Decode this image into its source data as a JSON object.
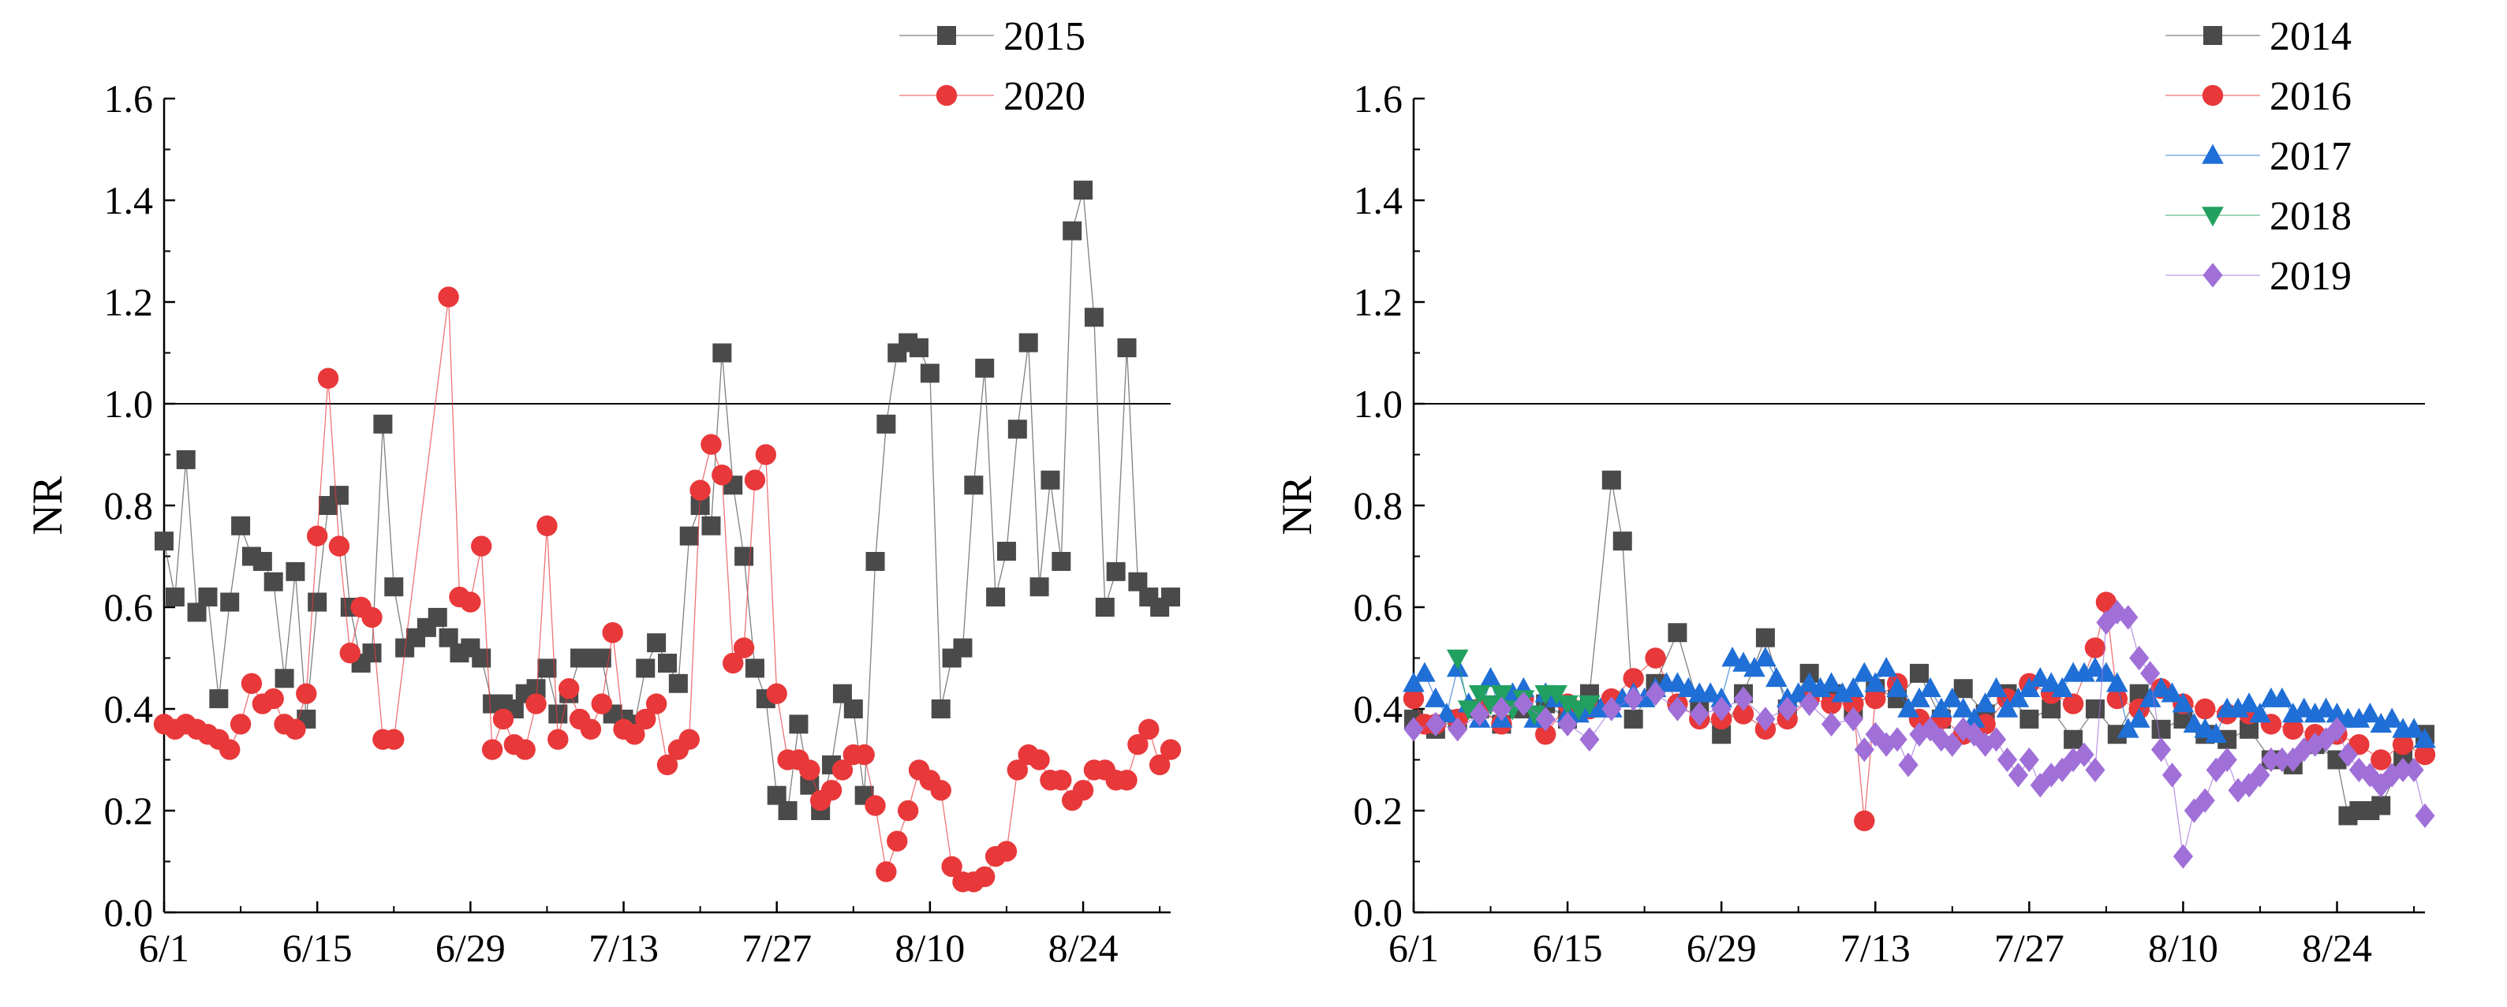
{
  "chart_data": [
    {
      "type": "line",
      "title": "",
      "xlabel": "",
      "ylabel": "NR",
      "ylim": [
        0.0,
        1.6
      ],
      "yticks": [
        "0.0",
        "0.2",
        "0.4",
        "0.6",
        "0.8",
        "1.0",
        "1.2",
        "1.4",
        "1.6"
      ],
      "xlim": [
        0,
        92
      ],
      "xtick_positions": [
        0,
        14,
        28,
        42,
        56,
        70,
        84
      ],
      "xticks": [
        "6/1",
        "6/15",
        "6/29",
        "7/13",
        "7/27",
        "8/10",
        "8/24"
      ],
      "reference_line": 1.0,
      "legend": [
        "2015",
        "2020"
      ],
      "legend_position": "top-right",
      "series": [
        {
          "name": "2015",
          "color": "#4a4a4a",
          "marker": "square",
          "x": [
            0,
            1,
            2,
            3,
            4,
            5,
            6,
            7,
            8,
            9,
            10,
            11,
            12,
            13,
            14,
            15,
            16,
            17,
            18,
            19,
            20,
            21,
            22,
            23,
            24,
            25,
            26,
            27,
            28,
            29,
            30,
            31,
            32,
            33,
            34,
            35,
            36,
            37,
            38,
            39,
            40,
            41,
            42,
            43,
            44,
            45,
            46,
            47,
            48,
            49,
            50,
            51,
            52,
            53,
            54,
            55,
            56,
            57,
            58,
            59,
            60,
            61,
            62,
            63,
            64,
            65,
            66,
            67,
            68,
            69,
            70,
            71,
            72,
            73,
            74,
            75,
            76,
            77,
            78,
            79,
            80,
            81,
            82,
            83,
            84,
            85,
            86,
            87,
            88,
            89,
            90,
            91,
            92
          ],
          "values": [
            0.73,
            0.62,
            0.89,
            0.59,
            0.62,
            0.42,
            0.61,
            0.76,
            0.7,
            0.69,
            0.65,
            0.46,
            0.67,
            0.38,
            0.61,
            0.8,
            0.82,
            0.6,
            0.49,
            0.51,
            0.96,
            0.64,
            0.52,
            0.54,
            0.56,
            0.58,
            0.54,
            0.51,
            0.52,
            0.5,
            0.41,
            0.41,
            0.4,
            0.43,
            0.44,
            0.48,
            0.39,
            0.43,
            0.5,
            0.5,
            0.5,
            0.39,
            0.38,
            0.37,
            0.48,
            0.53,
            0.49,
            0.45,
            0.74,
            0.8,
            0.76,
            1.1,
            0.84,
            0.7,
            0.48,
            0.42,
            0.23,
            0.2,
            0.37,
            0.25,
            0.2,
            0.29,
            0.43,
            0.4,
            0.23,
            0.69,
            0.96,
            1.1,
            1.12,
            1.11,
            1.06,
            0.4,
            0.5,
            0.52,
            0.84,
            1.07,
            0.62,
            0.71,
            0.95,
            1.12,
            0.64,
            0.85,
            0.69,
            1.34,
            1.42,
            1.17,
            0.6,
            0.67,
            1.11,
            0.65,
            0.62,
            0.6,
            0.62
          ]
        },
        {
          "name": "2020",
          "color": "#e8383a",
          "marker": "circle",
          "x": [
            0,
            1,
            2,
            3,
            4,
            5,
            6,
            7,
            8,
            9,
            10,
            11,
            12,
            13,
            14,
            15,
            16,
            17,
            18,
            19,
            20,
            21,
            26,
            27,
            28,
            29,
            30,
            31,
            32,
            33,
            34,
            35,
            36,
            37,
            38,
            39,
            40,
            41,
            42,
            43,
            44,
            45,
            46,
            47,
            48,
            49,
            50,
            51,
            52,
            53,
            54,
            55,
            56,
            57,
            58,
            59,
            60,
            61,
            62,
            63,
            64,
            65,
            66,
            67,
            68,
            69,
            70,
            71,
            72,
            73,
            74,
            75,
            76,
            77,
            78,
            79,
            80,
            81,
            82,
            83,
            84,
            85,
            86,
            87,
            88,
            89,
            90,
            91,
            92
          ],
          "values": [
            0.37,
            0.36,
            0.37,
            0.36,
            0.35,
            0.34,
            0.32,
            0.37,
            0.45,
            0.41,
            0.42,
            0.37,
            0.36,
            0.43,
            0.74,
            1.05,
            0.72,
            0.51,
            0.6,
            0.58,
            0.34,
            0.34,
            1.21,
            0.62,
            0.61,
            0.72,
            0.32,
            0.38,
            0.33,
            0.32,
            0.41,
            0.76,
            0.34,
            0.44,
            0.38,
            0.36,
            0.41,
            0.55,
            0.36,
            0.35,
            0.38,
            0.41,
            0.29,
            0.32,
            0.34,
            0.83,
            0.92,
            0.86,
            0.49,
            0.52,
            0.85,
            0.9,
            0.43,
            0.3,
            0.3,
            0.28,
            0.22,
            0.24,
            0.28,
            0.31,
            0.31,
            0.21,
            0.08,
            0.14,
            0.2,
            0.28,
            0.26,
            0.24,
            0.09,
            0.06,
            0.06,
            0.07,
            0.11,
            0.12,
            0.28,
            0.31,
            0.3,
            0.26,
            0.26,
            0.22,
            0.24,
            0.28,
            0.28,
            0.26,
            0.26,
            0.33,
            0.36,
            0.29,
            0.32
          ]
        }
      ]
    },
    {
      "type": "line",
      "title": "",
      "xlabel": "",
      "ylabel": "NR",
      "ylim": [
        0.0,
        1.6
      ],
      "yticks": [
        "0.0",
        "0.2",
        "0.4",
        "0.6",
        "0.8",
        "1.0",
        "1.2",
        "1.4",
        "1.6"
      ],
      "xlim": [
        0,
        92
      ],
      "xtick_positions": [
        0,
        14,
        28,
        42,
        56,
        70,
        84
      ],
      "xticks": [
        "6/1",
        "6/15",
        "6/29",
        "7/13",
        "7/27",
        "8/10",
        "8/24"
      ],
      "reference_line": 1.0,
      "legend": [
        "2014",
        "2016",
        "2017",
        "2018",
        "2019"
      ],
      "legend_position": "top-right",
      "series": [
        {
          "name": "2014",
          "color": "#4a4a4a",
          "marker": "square",
          "x": [
            0,
            2,
            4,
            6,
            8,
            10,
            12,
            14,
            16,
            18,
            19,
            20,
            22,
            24,
            26,
            28,
            30,
            32,
            34,
            36,
            38,
            40,
            42,
            44,
            46,
            48,
            50,
            52,
            54,
            56,
            58,
            60,
            62,
            64,
            66,
            68,
            70,
            72,
            74,
            76,
            78,
            80,
            82,
            84,
            85,
            86,
            87,
            88,
            90,
            92
          ],
          "values": [
            0.38,
            0.36,
            0.38,
            0.4,
            0.37,
            0.4,
            0.41,
            0.38,
            0.43,
            0.85,
            0.73,
            0.38,
            0.45,
            0.55,
            0.4,
            0.35,
            0.43,
            0.54,
            0.4,
            0.47,
            0.43,
            0.4,
            0.44,
            0.42,
            0.47,
            0.38,
            0.44,
            0.39,
            0.43,
            0.38,
            0.4,
            0.34,
            0.4,
            0.35,
            0.43,
            0.36,
            0.38,
            0.35,
            0.34,
            0.36,
            0.3,
            0.29,
            0.33,
            0.3,
            0.19,
            0.2,
            0.2,
            0.21,
            0.3,
            0.35
          ]
        },
        {
          "name": "2016",
          "color": "#e8383a",
          "marker": "circle",
          "x": [
            0,
            1,
            2,
            4,
            6,
            8,
            10,
            12,
            14,
            16,
            18,
            20,
            22,
            24,
            26,
            28,
            30,
            32,
            34,
            36,
            38,
            40,
            41,
            42,
            44,
            46,
            48,
            50,
            52,
            54,
            56,
            58,
            60,
            62,
            63,
            64,
            66,
            68,
            70,
            72,
            74,
            76,
            78,
            80,
            82,
            84,
            86,
            88,
            90,
            92
          ],
          "values": [
            0.42,
            0.37,
            0.37,
            0.38,
            0.4,
            0.37,
            0.42,
            0.35,
            0.41,
            0.4,
            0.42,
            0.46,
            0.5,
            0.41,
            0.38,
            0.38,
            0.39,
            0.36,
            0.38,
            0.42,
            0.41,
            0.41,
            0.18,
            0.42,
            0.45,
            0.38,
            0.38,
            0.35,
            0.37,
            0.42,
            0.45,
            0.43,
            0.41,
            0.52,
            0.61,
            0.42,
            0.4,
            0.44,
            0.41,
            0.4,
            0.39,
            0.39,
            0.37,
            0.36,
            0.35,
            0.35,
            0.33,
            0.3,
            0.33,
            0.31
          ]
        },
        {
          "name": "2017",
          "color": "#1f6fd6",
          "marker": "triangle-up",
          "x": [
            0,
            1,
            2,
            3,
            4,
            5,
            6,
            7,
            8,
            9,
            10,
            11,
            12,
            13,
            14,
            15,
            16,
            17,
            18,
            19,
            20,
            21,
            22,
            23,
            24,
            25,
            26,
            27,
            28,
            29,
            30,
            31,
            32,
            33,
            34,
            35,
            36,
            37,
            38,
            39,
            40,
            41,
            42,
            43,
            44,
            45,
            46,
            47,
            48,
            49,
            50,
            51,
            52,
            53,
            54,
            55,
            56,
            57,
            58,
            59,
            60,
            61,
            62,
            63,
            64,
            65,
            66,
            67,
            68,
            69,
            70,
            71,
            72,
            73,
            74,
            75,
            76,
            77,
            78,
            79,
            80,
            81,
            82,
            83,
            84,
            85,
            86,
            87,
            88,
            89,
            90,
            91,
            92
          ],
          "values": [
            0.45,
            0.47,
            0.42,
            0.39,
            0.48,
            0.41,
            0.38,
            0.46,
            0.38,
            0.43,
            0.44,
            0.38,
            0.43,
            0.42,
            0.39,
            0.39,
            0.4,
            0.4,
            0.4,
            0.42,
            0.43,
            0.42,
            0.44,
            0.45,
            0.45,
            0.44,
            0.43,
            0.43,
            0.42,
            0.5,
            0.49,
            0.48,
            0.5,
            0.46,
            0.42,
            0.43,
            0.45,
            0.44,
            0.45,
            0.43,
            0.44,
            0.47,
            0.45,
            0.48,
            0.44,
            0.4,
            0.42,
            0.44,
            0.4,
            0.42,
            0.4,
            0.38,
            0.41,
            0.44,
            0.4,
            0.42,
            0.44,
            0.46,
            0.45,
            0.44,
            0.47,
            0.47,
            0.48,
            0.47,
            0.45,
            0.36,
            0.38,
            0.42,
            0.44,
            0.43,
            0.41,
            0.37,
            0.36,
            0.35,
            0.4,
            0.4,
            0.41,
            0.39,
            0.42,
            0.42,
            0.39,
            0.4,
            0.39,
            0.4,
            0.39,
            0.38,
            0.38,
            0.39,
            0.37,
            0.38,
            0.36,
            0.36,
            0.34
          ]
        },
        {
          "name": "2018",
          "color": "#22a060",
          "marker": "triangle-down",
          "x": [
            4,
            5,
            6,
            7,
            8,
            9,
            10,
            11,
            12,
            13,
            14,
            15,
            16
          ],
          "values": [
            0.5,
            0.4,
            0.43,
            0.41,
            0.43,
            0.4,
            0.42,
            0.39,
            0.43,
            0.43,
            0.41,
            0.4,
            0.41
          ]
        },
        {
          "name": "2019",
          "color": "#a070d8",
          "marker": "diamond",
          "x": [
            0,
            2,
            4,
            6,
            8,
            10,
            12,
            14,
            16,
            18,
            20,
            22,
            24,
            26,
            28,
            30,
            32,
            34,
            36,
            38,
            40,
            41,
            42,
            43,
            44,
            45,
            46,
            47,
            48,
            49,
            50,
            51,
            52,
            53,
            54,
            55,
            56,
            57,
            58,
            59,
            60,
            61,
            62,
            63,
            64,
            65,
            66,
            67,
            68,
            69,
            70,
            71,
            72,
            73,
            74,
            75,
            76,
            77,
            78,
            79,
            80,
            81,
            82,
            83,
            84,
            85,
            86,
            87,
            88,
            89,
            90,
            91,
            92
          ],
          "values": [
            0.36,
            0.37,
            0.36,
            0.39,
            0.4,
            0.41,
            0.38,
            0.37,
            0.34,
            0.4,
            0.42,
            0.43,
            0.4,
            0.39,
            0.4,
            0.42,
            0.38,
            0.4,
            0.41,
            0.37,
            0.38,
            0.32,
            0.35,
            0.33,
            0.34,
            0.29,
            0.35,
            0.36,
            0.34,
            0.33,
            0.36,
            0.35,
            0.33,
            0.34,
            0.3,
            0.27,
            0.3,
            0.25,
            0.27,
            0.28,
            0.3,
            0.31,
            0.28,
            0.57,
            0.59,
            0.58,
            0.5,
            0.47,
            0.32,
            0.27,
            0.11,
            0.2,
            0.22,
            0.28,
            0.3,
            0.24,
            0.25,
            0.27,
            0.3,
            0.3,
            0.3,
            0.32,
            0.33,
            0.34,
            0.36,
            0.31,
            0.28,
            0.27,
            0.25,
            0.27,
            0.28,
            0.28,
            0.19
          ]
        }
      ]
    }
  ]
}
